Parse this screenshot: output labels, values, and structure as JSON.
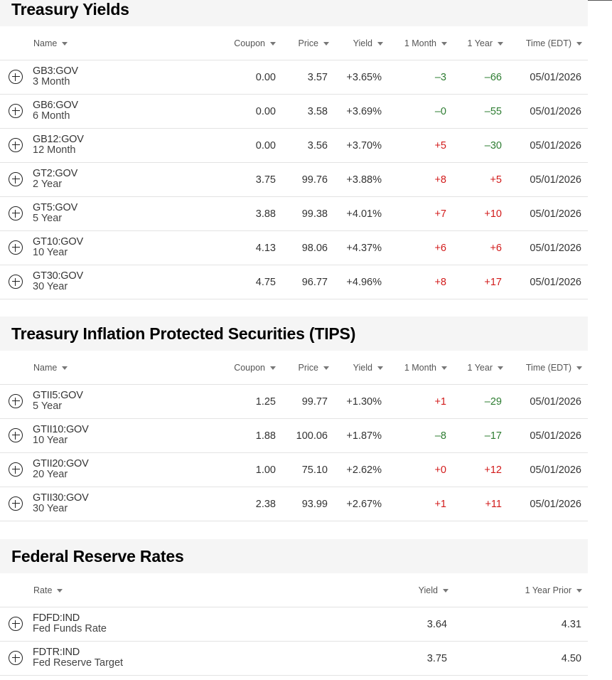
{
  "columns": {
    "name": "Name",
    "coupon": "Coupon",
    "price": "Price",
    "yield": "Yield",
    "month": "1 Month",
    "year": "1 Year",
    "time": "Time (EDT)"
  },
  "treasury": {
    "title": "Treasury Yields",
    "rows": [
      {
        "symbol": "GB3:GOV",
        "desc": "3 Month",
        "coupon": "0.00",
        "price": "3.57",
        "yield": "+3.65%",
        "month": "-3",
        "year": "-66",
        "time": "05/01/2026"
      },
      {
        "symbol": "GB6:GOV",
        "desc": "6 Month",
        "coupon": "0.00",
        "price": "3.58",
        "yield": "+3.69%",
        "month": "-0",
        "year": "-55",
        "time": "05/01/2026"
      },
      {
        "symbol": "GB12:GOV",
        "desc": "12 Month",
        "coupon": "0.00",
        "price": "3.56",
        "yield": "+3.70%",
        "month": "+5",
        "year": "-30",
        "time": "05/01/2026"
      },
      {
        "symbol": "GT2:GOV",
        "desc": "2 Year",
        "coupon": "3.75",
        "price": "99.76",
        "yield": "+3.88%",
        "month": "+8",
        "year": "+5",
        "time": "05/01/2026"
      },
      {
        "symbol": "GT5:GOV",
        "desc": "5 Year",
        "coupon": "3.88",
        "price": "99.38",
        "yield": "+4.01%",
        "month": "+7",
        "year": "+10",
        "time": "05/01/2026"
      },
      {
        "symbol": "GT10:GOV",
        "desc": "10 Year",
        "coupon": "4.13",
        "price": "98.06",
        "yield": "+4.37%",
        "month": "+6",
        "year": "+6",
        "time": "05/01/2026"
      },
      {
        "symbol": "GT30:GOV",
        "desc": "30 Year",
        "coupon": "4.75",
        "price": "96.77",
        "yield": "+4.96%",
        "month": "+8",
        "year": "+17",
        "time": "05/01/2026"
      }
    ]
  },
  "tips": {
    "title": "Treasury Inflation Protected Securities (TIPS)",
    "rows": [
      {
        "symbol": "GTII5:GOV",
        "desc": "5 Year",
        "coupon": "1.25",
        "price": "99.77",
        "yield": "+1.30%",
        "month": "+1",
        "year": "-29",
        "time": "05/01/2026"
      },
      {
        "symbol": "GTII10:GOV",
        "desc": "10 Year",
        "coupon": "1.88",
        "price": "100.06",
        "yield": "+1.87%",
        "month": "-8",
        "year": "-17",
        "time": "05/01/2026"
      },
      {
        "symbol": "GTII20:GOV",
        "desc": "20 Year",
        "coupon": "1.00",
        "price": "75.10",
        "yield": "+2.62%",
        "month": "+0",
        "year": "+12",
        "time": "05/01/2026"
      },
      {
        "symbol": "GTII30:GOV",
        "desc": "30 Year",
        "coupon": "2.38",
        "price": "93.99",
        "yield": "+2.67%",
        "month": "+1",
        "year": "+11",
        "time": "05/01/2026"
      }
    ]
  },
  "fed": {
    "title": "Federal Reserve Rates",
    "columns": {
      "rate": "Rate",
      "yield": "Yield",
      "prior": "1 Year Prior"
    },
    "rows": [
      {
        "symbol": "FDFD:IND",
        "desc": "Fed Funds Rate",
        "yield": "3.64",
        "prior": "4.31"
      },
      {
        "symbol": "FDTR:IND",
        "desc": "Fed Reserve Target",
        "yield": "3.75",
        "prior": "4.50"
      }
    ]
  },
  "icons": {
    "expand": "plus-circle-icon",
    "sort": "caret-down-icon"
  },
  "colors": {
    "positive": "#d21a1a",
    "negative": "#2e7d32",
    "header_bg": "#f5f5f5"
  }
}
